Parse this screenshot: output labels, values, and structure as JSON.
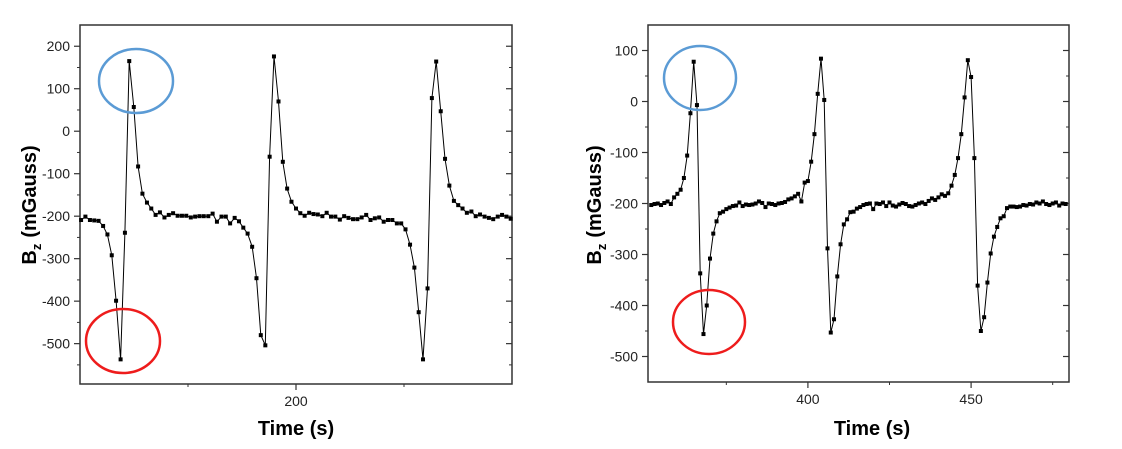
{
  "annotation_colors": {
    "peak": "#5b9bd5",
    "trough": "#ee1c1c"
  },
  "chart_data": [
    {
      "type": "line",
      "marker": "square",
      "xlabel": "Time (s)",
      "ylabel": {
        "main": "B",
        "sub": "z",
        "unit": "(mGauss)"
      },
      "xlim": [
        100,
        300
      ],
      "ylim": [
        -595,
        250
      ],
      "x_major_ticks": [
        200
      ],
      "x_minor_ticks": [
        150,
        250
      ],
      "x_tick_labels": [
        "200"
      ],
      "y_major_ticks": [
        200,
        100,
        0,
        -100,
        -200,
        -300,
        -400,
        -500
      ],
      "y_tick_labels": [
        "200",
        "100",
        "0",
        "-100",
        "-200",
        "-300",
        "-400",
        "-500"
      ],
      "grid": false,
      "series": [
        {
          "color": "#000000",
          "x": [
            100.5,
            102.5,
            104.6,
            106.6,
            108.6,
            110.7,
            112.7,
            114.7,
            116.7,
            118.8,
            120.8,
            122.8,
            124.9,
            126.9,
            128.9,
            131.0,
            133.0,
            135.0,
            137.0,
            139.1,
            141.1,
            143.1,
            145.2,
            147.2,
            149.2,
            151.3,
            153.3,
            155.3,
            157.3,
            159.4,
            161.4,
            163.4,
            165.5,
            167.5,
            169.5,
            171.6,
            173.6,
            175.6,
            177.6,
            179.7,
            181.7,
            183.7,
            185.8,
            187.8,
            189.8,
            191.9,
            193.9,
            195.9,
            197.9,
            200.0,
            202.0,
            204.0,
            206.1,
            208.1,
            210.1,
            212.2,
            214.2,
            216.2,
            218.2,
            220.3,
            222.3,
            224.3,
            226.4,
            228.4,
            230.4,
            232.5,
            234.5,
            236.5,
            238.5,
            240.6,
            242.6,
            244.6,
            246.7,
            248.7,
            250.7,
            252.8,
            254.8,
            256.8,
            258.8,
            260.9,
            262.9,
            264.9,
            267.0,
            269.0,
            271.0,
            273.1,
            275.1,
            277.1,
            279.1,
            281.2,
            283.2,
            285.2,
            287.3,
            289.3,
            291.3,
            293.4,
            295.4,
            297.4,
            299.4
          ],
          "y": [
            -209,
            -201,
            -209,
            -210,
            -211,
            -223,
            -243,
            -292,
            -399,
            -537,
            -239,
            165,
            57,
            -83,
            -147,
            -168,
            -182,
            -197,
            -191,
            -203,
            -197,
            -193,
            -199,
            -199,
            -199,
            -203,
            -201,
            -200,
            -200,
            -200,
            -194,
            -213,
            -201,
            -201,
            -217,
            -204,
            -212,
            -227,
            -241,
            -272,
            -346,
            -480,
            -504,
            -60,
            176,
            70,
            -72,
            -135,
            -166,
            -182,
            -193,
            -199,
            -192,
            -195,
            -196,
            -200,
            -192,
            -201,
            -201,
            -208,
            -200,
            -204,
            -207,
            -207,
            -203,
            -197,
            -209,
            -205,
            -203,
            -213,
            -209,
            -209,
            -217,
            -217,
            -231,
            -267,
            -321,
            -426,
            -537,
            -370,
            78,
            164,
            47,
            -65,
            -128,
            -164,
            -174,
            -182,
            -192,
            -189,
            -200,
            -196,
            -201,
            -204,
            -207,
            -201,
            -197,
            -201,
            -206
          ]
        }
      ]
    },
    {
      "type": "line",
      "marker": "square",
      "xlabel": "Time (s)",
      "ylabel": {
        "main": "B",
        "sub": "z",
        "unit": "(mGauss)"
      },
      "xlim": [
        351,
        480
      ],
      "ylim": [
        -550,
        150
      ],
      "x_major_ticks": [
        400,
        450
      ],
      "x_minor_ticks": [
        375,
        425,
        475
      ],
      "x_tick_labels": [
        "400",
        "450"
      ],
      "y_major_ticks": [
        100,
        0,
        -100,
        -200,
        -300,
        -400,
        -500
      ],
      "y_tick_labels": [
        "100",
        "0",
        "-100",
        "-200",
        "-300",
        "-400",
        "-500"
      ],
      "grid": false,
      "series": [
        {
          "color": "#000000",
          "x": [
            352,
            353,
            354,
            355,
            356,
            357,
            358,
            359,
            360,
            361,
            362,
            363,
            364,
            365,
            366,
            367,
            368,
            369,
            370,
            371,
            372,
            373,
            374,
            375,
            376,
            377,
            378,
            379,
            380,
            381,
            382,
            383,
            384,
            385,
            386,
            387,
            388,
            389,
            390,
            391,
            392,
            393,
            394,
            395,
            396,
            397,
            398,
            399,
            400,
            401,
            402,
            403,
            404,
            405,
            406,
            407,
            408,
            409,
            410,
            411,
            412,
            413,
            414,
            415,
            416,
            417,
            418,
            419,
            420,
            421,
            422,
            423,
            424,
            425,
            426,
            427,
            428,
            429,
            430,
            431,
            432,
            433,
            434,
            435,
            436,
            437,
            438,
            439,
            440,
            441,
            442,
            443,
            444,
            445,
            446,
            447,
            448,
            449,
            450,
            451,
            452,
            453,
            454,
            455,
            456,
            457,
            458,
            459,
            460,
            461,
            462,
            463,
            464,
            465,
            466,
            467,
            468,
            469,
            470,
            471,
            472,
            473,
            474,
            475,
            476,
            477,
            478,
            479
          ],
          "y": [
            -203,
            -201,
            -200,
            -203,
            -199,
            -196,
            -201,
            -188,
            -181,
            -173,
            -150,
            -106,
            -23,
            78,
            -7,
            -337,
            -456,
            -400,
            -308,
            -259,
            -235,
            -219,
            -216,
            -211,
            -208,
            -205,
            -204,
            -198,
            -205,
            -202,
            -203,
            -202,
            -200,
            -196,
            -199,
            -207,
            -200,
            -201,
            -203,
            -200,
            -199,
            -197,
            -192,
            -190,
            -186,
            -181,
            -196,
            -159,
            -156,
            -118,
            -64,
            15,
            84,
            3,
            -288,
            -453,
            -427,
            -343,
            -280,
            -241,
            -231,
            -217,
            -216,
            -210,
            -207,
            -203,
            -201,
            -200,
            -211,
            -200,
            -201,
            -198,
            -205,
            -198,
            -204,
            -206,
            -202,
            -199,
            -201,
            -205,
            -206,
            -203,
            -200,
            -198,
            -201,
            -195,
            -190,
            -193,
            -188,
            -182,
            -185,
            -180,
            -165,
            -144,
            -111,
            -64,
            8,
            81,
            48,
            -111,
            -361,
            -450,
            -423,
            -355,
            -298,
            -265,
            -246,
            -229,
            -225,
            -209,
            -206,
            -206,
            -207,
            -206,
            -203,
            -204,
            -201,
            -202,
            -198,
            -200,
            -196,
            -201,
            -203,
            -200,
            -198,
            -204,
            -200,
            -201
          ]
        }
      ]
    }
  ]
}
